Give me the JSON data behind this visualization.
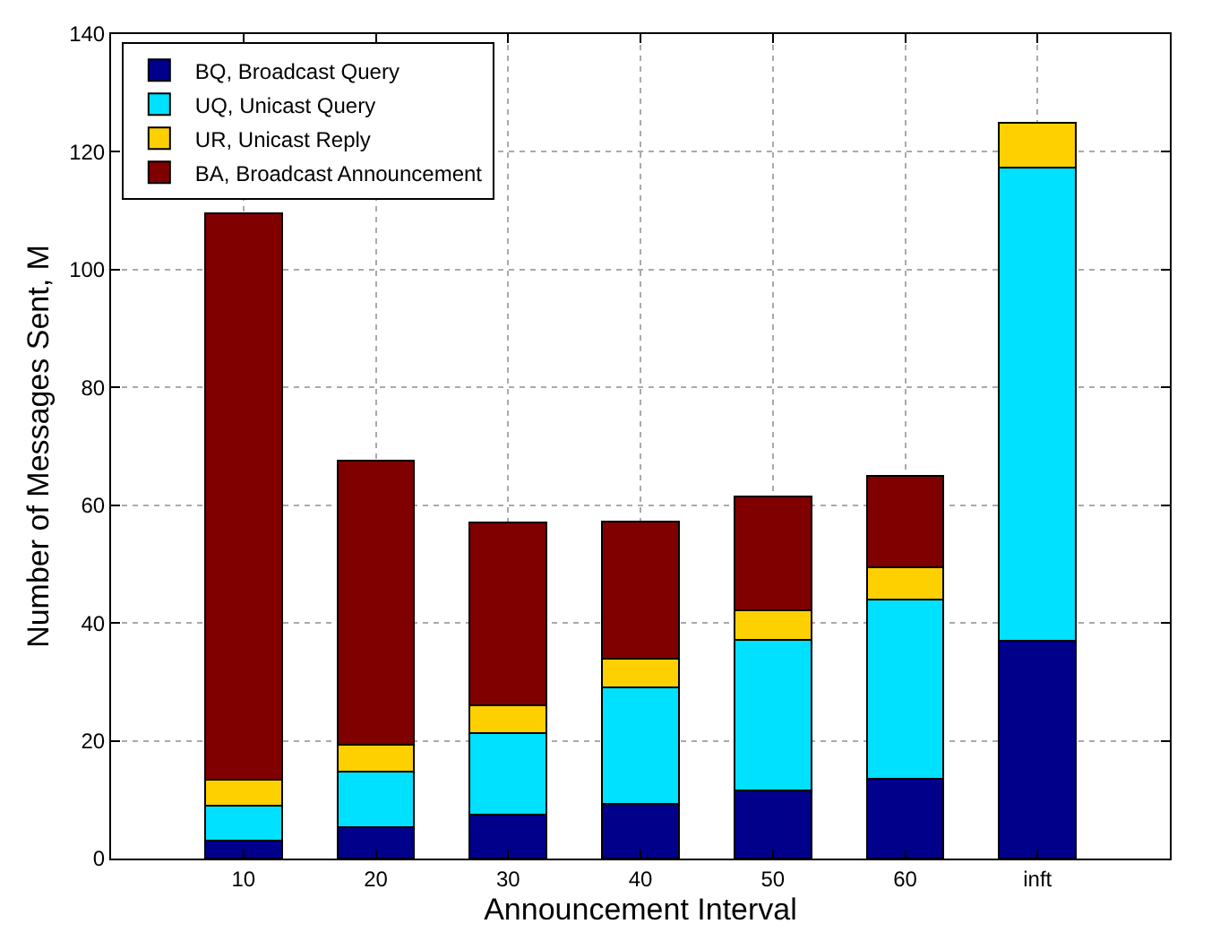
{
  "chart_data": {
    "type": "bar",
    "stacked": true,
    "xlabel": "Announcement Interval",
    "ylabel": "Number of Messages Sent, M",
    "categories": [
      "10",
      "20",
      "30",
      "40",
      "50",
      "60",
      "inft"
    ],
    "series": [
      {
        "name": "BQ, Broadcast Query",
        "color": "#00008b",
        "values": [
          3,
          5.3,
          7.5,
          9.3,
          11.5,
          13.5,
          37
        ]
      },
      {
        "name": "UQ, Unicast Query",
        "color": "#00e0ff",
        "values": [
          6,
          9.5,
          13.8,
          19.7,
          25.7,
          30.5,
          80.3
        ]
      },
      {
        "name": "UR, Unicast Reply",
        "color": "#ffd000",
        "values": [
          4.4,
          4.5,
          4.7,
          5,
          4.9,
          5.4,
          7.7
        ]
      },
      {
        "name": "BA, Broadcast Announcement",
        "color": "#800000",
        "values": [
          96.1,
          48.2,
          31,
          23.2,
          19.4,
          15.6,
          null
        ]
      }
    ],
    "ylim": [
      0,
      140
    ],
    "yticks": [
      0,
      20,
      40,
      60,
      80,
      100,
      120,
      140
    ],
    "grid": true,
    "legend": "top left"
  }
}
